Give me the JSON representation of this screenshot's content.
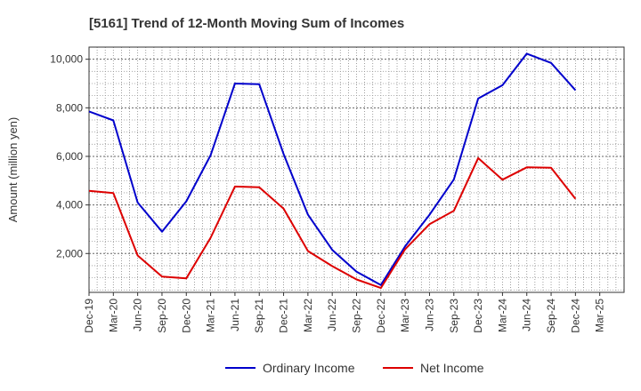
{
  "chart_data": {
    "type": "line",
    "title": "[5161]  Trend of 12-Month Moving Sum of Incomes",
    "xlabel": "",
    "ylabel": "Amount (million yen)",
    "categories": [
      "Dec-19",
      "Mar-20",
      "Jun-20",
      "Sep-20",
      "Dec-20",
      "Mar-21",
      "Jun-21",
      "Sep-21",
      "Dec-21",
      "Mar-22",
      "Jun-22",
      "Sep-22",
      "Dec-22",
      "Mar-23",
      "Jun-23",
      "Sep-23",
      "Dec-23",
      "Mar-24",
      "Jun-24",
      "Sep-24",
      "Dec-24",
      "Mar-25"
    ],
    "ylim": [
      400,
      10500
    ],
    "yticks": [
      2000,
      4000,
      6000,
      8000,
      10000
    ],
    "ytick_labels": [
      "2,000",
      "4,000",
      "6,000",
      "8,000",
      "10,000"
    ],
    "grid": true,
    "legend_position": "bottom-center",
    "series": [
      {
        "name": "Ordinary Income",
        "color": "#0000cc",
        "values": [
          7850,
          7480,
          4100,
          2900,
          4150,
          6050,
          9000,
          8970,
          6100,
          3600,
          2150,
          1250,
          700,
          2300,
          3600,
          5050,
          8380,
          8930,
          10230,
          9850,
          8720,
          null
        ]
      },
      {
        "name": "Net Income",
        "color": "#dd0000",
        "values": [
          4580,
          4490,
          1920,
          1050,
          980,
          2650,
          4760,
          4730,
          3850,
          2100,
          1480,
          930,
          580,
          2180,
          3210,
          3760,
          5930,
          5040,
          5550,
          5530,
          4250,
          null
        ]
      }
    ]
  }
}
